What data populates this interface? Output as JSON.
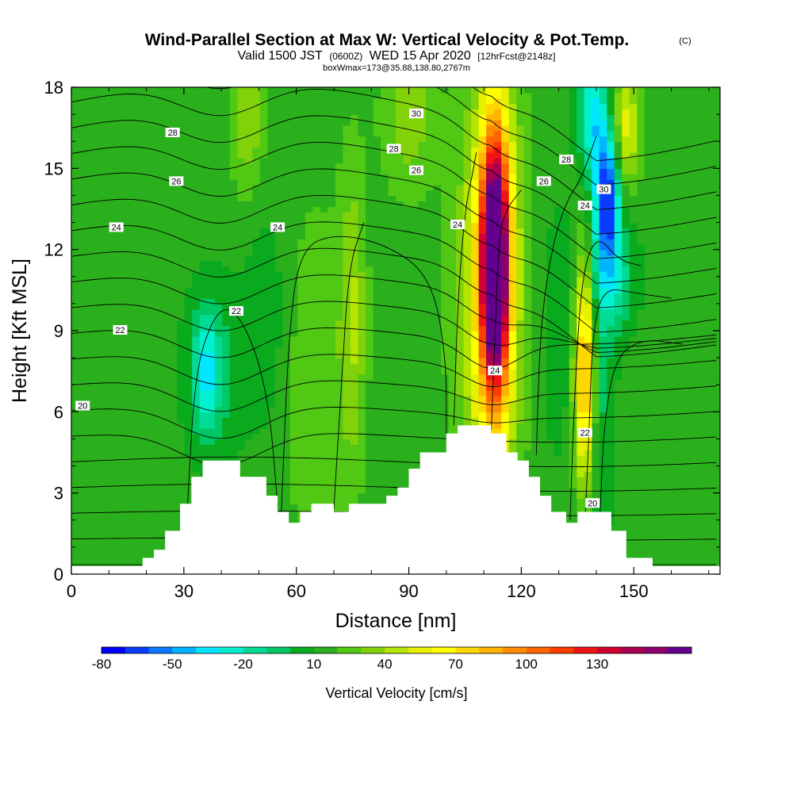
{
  "title": {
    "main": "Wind-Parallel Section at Max W: Vertical Velocity & Pot.Temp.",
    "copyright": "(C)",
    "valid_prefix": "Valid 1500 JST",
    "valid_utc": "(0600Z)",
    "valid_date": "WED 15 Apr 2020",
    "forecast": "[12hrFcst@2148z]",
    "box": "boxWmax=173@35.88,138.80,2767m"
  },
  "chart_data": {
    "type": "heatmap",
    "xlabel": "Distance [nm]",
    "ylabel": "Height [Kft MSL]",
    "xlim": [
      0,
      173
    ],
    "ylim": [
      0,
      18
    ],
    "xticks": [
      0,
      30,
      60,
      90,
      120,
      150
    ],
    "yticks": [
      0,
      3,
      6,
      9,
      12,
      15,
      18
    ],
    "background_w": 5,
    "terrain": [
      [
        0,
        0.3
      ],
      [
        19,
        0.3
      ],
      [
        19,
        0.6
      ],
      [
        22,
        0.6
      ],
      [
        22,
        0.9
      ],
      [
        25,
        0.9
      ],
      [
        25,
        1.6
      ],
      [
        29,
        1.6
      ],
      [
        29,
        2.6
      ],
      [
        32,
        2.6
      ],
      [
        32,
        3.6
      ],
      [
        35,
        3.6
      ],
      [
        35,
        4.2
      ],
      [
        45,
        4.2
      ],
      [
        45,
        3.6
      ],
      [
        52,
        3.6
      ],
      [
        52,
        2.9
      ],
      [
        55,
        2.9
      ],
      [
        55,
        2.3
      ],
      [
        58,
        2.3
      ],
      [
        58,
        1.9
      ],
      [
        61,
        1.9
      ],
      [
        61,
        2.3
      ],
      [
        64,
        2.3
      ],
      [
        64,
        2.6
      ],
      [
        70,
        2.6
      ],
      [
        70,
        2.3
      ],
      [
        74,
        2.3
      ],
      [
        74,
        2.6
      ],
      [
        84,
        2.6
      ],
      [
        84,
        2.9
      ],
      [
        87,
        2.9
      ],
      [
        87,
        3.2
      ],
      [
        90,
        3.2
      ],
      [
        90,
        3.9
      ],
      [
        93,
        3.9
      ],
      [
        93,
        4.5
      ],
      [
        100,
        4.5
      ],
      [
        100,
        5.2
      ],
      [
        103,
        5.2
      ],
      [
        103,
        5.5
      ],
      [
        112,
        5.5
      ],
      [
        112,
        5.2
      ],
      [
        116,
        5.2
      ],
      [
        116,
        4.5
      ],
      [
        119,
        4.5
      ],
      [
        119,
        4.2
      ],
      [
        122,
        4.2
      ],
      [
        122,
        3.6
      ],
      [
        125,
        3.6
      ],
      [
        125,
        2.9
      ],
      [
        128,
        2.9
      ],
      [
        128,
        2.3
      ],
      [
        132,
        2.3
      ],
      [
        132,
        1.9
      ],
      [
        135,
        1.9
      ],
      [
        135,
        2.3
      ],
      [
        144,
        2.3
      ],
      [
        144,
        1.6
      ],
      [
        148,
        1.6
      ],
      [
        148,
        0.6
      ],
      [
        155,
        0.6
      ],
      [
        155,
        0.3
      ],
      [
        173,
        0.3
      ]
    ],
    "w_features": [
      {
        "x": 113,
        "y": 11.5,
        "sx": 2.4,
        "sy": 3.0,
        "w": 150
      },
      {
        "x": 113,
        "y": 11.0,
        "sx": 4.5,
        "sy": 5.5,
        "w": 70
      },
      {
        "x": 137,
        "y": 7.5,
        "sx": 2.0,
        "sy": 3.0,
        "w": 90
      },
      {
        "x": 140,
        "y": 8.0,
        "sx": 3.0,
        "sy": 5.0,
        "w": -25
      },
      {
        "x": 143,
        "y": 14.0,
        "sx": 2.2,
        "sy": 1.7,
        "w": -80
      },
      {
        "x": 139,
        "y": 17.0,
        "sx": 2.5,
        "sy": 1.5,
        "w": -45
      },
      {
        "x": 148,
        "y": 16.5,
        "sx": 2.5,
        "sy": 1.5,
        "w": 40
      },
      {
        "x": 145,
        "y": 11.0,
        "sx": 4.0,
        "sy": 1.5,
        "w": -30
      },
      {
        "x": 130,
        "y": 9.0,
        "sx": 4.0,
        "sy": 4.0,
        "w": -10
      },
      {
        "x": 107,
        "y": 10.0,
        "sx": 5.0,
        "sy": 5.0,
        "w": 15
      },
      {
        "x": 36,
        "y": 7.5,
        "sx": 2.5,
        "sy": 1.5,
        "w": -35
      },
      {
        "x": 38,
        "y": 7.5,
        "sx": 6.0,
        "sy": 2.5,
        "w": -18
      },
      {
        "x": 52,
        "y": 9.5,
        "sx": 4.0,
        "sy": 3.0,
        "w": -12
      },
      {
        "x": 75,
        "y": 9.5,
        "sx": 2.5,
        "sy": 4.0,
        "w": 25
      },
      {
        "x": 65,
        "y": 7.0,
        "sx": 6.0,
        "sy": 5.0,
        "w": 12
      },
      {
        "x": 47,
        "y": 17.0,
        "sx": 3.0,
        "sy": 2.0,
        "w": 25
      },
      {
        "x": 90,
        "y": 17.0,
        "sx": 5.0,
        "sy": 2.0,
        "w": 22
      },
      {
        "x": 10,
        "y": 8.0,
        "sx": 8.0,
        "sy": 4.0,
        "w": -3
      }
    ],
    "colorbar": {
      "title": "Vertical Velocity [cm/s]",
      "tick_labels": [
        "-80",
        "-50",
        "-20",
        "10",
        "40",
        "70",
        "100",
        "130"
      ],
      "tick_values": [
        -80,
        -50,
        -20,
        10,
        40,
        70,
        100,
        130
      ],
      "colors": [
        "#0000ff",
        "#0a3cff",
        "#0a78ff",
        "#00b4ff",
        "#00e6ff",
        "#00f0d0",
        "#00dc96",
        "#00c864",
        "#0aaa1e",
        "#2ab01c",
        "#50c814",
        "#82d20a",
        "#b4e600",
        "#e6f000",
        "#ffff00",
        "#ffd700",
        "#ffb400",
        "#ff8c00",
        "#ff6400",
        "#ff3c00",
        "#f01414",
        "#d20032",
        "#aa0050",
        "#8c006e",
        "#64008c"
      ]
    },
    "theta_labels": [
      {
        "text": "30",
        "x": 92,
        "y": 17.0
      },
      {
        "text": "28",
        "x": 27,
        "y": 16.3
      },
      {
        "text": "28",
        "x": 86,
        "y": 15.7
      },
      {
        "text": "28",
        "x": 132,
        "y": 15.3
      },
      {
        "text": "26",
        "x": 28,
        "y": 14.5
      },
      {
        "text": "26",
        "x": 92,
        "y": 14.9
      },
      {
        "text": "26",
        "x": 126,
        "y": 14.5
      },
      {
        "text": "30",
        "x": 142,
        "y": 14.2
      },
      {
        "text": "24",
        "x": 12,
        "y": 12.8
      },
      {
        "text": "24",
        "x": 55,
        "y": 12.8
      },
      {
        "text": "24",
        "x": 103,
        "y": 12.9
      },
      {
        "text": "24",
        "x": 137,
        "y": 13.6
      },
      {
        "text": "22",
        "x": 44,
        "y": 9.7
      },
      {
        "text": "22",
        "x": 13,
        "y": 9.0
      },
      {
        "text": "24",
        "x": 113,
        "y": 7.5
      },
      {
        "text": "20",
        "x": 3,
        "y": 6.2
      },
      {
        "text": "22",
        "x": 137,
        "y": 5.2
      },
      {
        "text": "20",
        "x": 139,
        "y": 2.6
      }
    ]
  }
}
